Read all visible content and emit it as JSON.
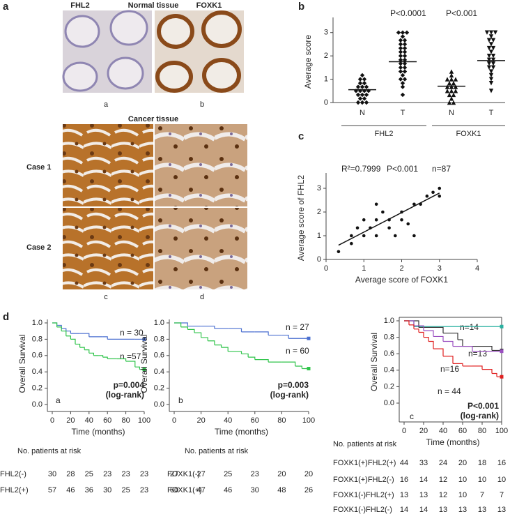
{
  "panel_labels": [
    "a",
    "b",
    "c",
    "d"
  ],
  "panel_a": {
    "normal_labels": [
      "FHL2",
      "Normal tissue",
      "FOXK1"
    ],
    "image_labels": [
      "a",
      "b",
      "c",
      "d"
    ],
    "cancer_title": "Cancer tissue",
    "cases": [
      "Case 1",
      "Case 2"
    ]
  },
  "chart_data": [
    {
      "type": "strip",
      "ylabel": "Average score",
      "categories": [
        "N",
        "T",
        "N",
        "T"
      ],
      "groups": [
        "FHL2",
        "FOXK1"
      ],
      "annotations": [
        "P<0.0001",
        "P<0.001"
      ],
      "markers": [
        "diamond",
        "diamond",
        "triangle",
        "triangle-down"
      ],
      "color": "#111111",
      "ylim": [
        0,
        3.5
      ],
      "yticks": [
        0,
        1,
        2,
        3
      ],
      "points": [
        [
          0,
          0,
          0,
          0.17,
          0.17,
          0.33,
          0.33,
          0.33,
          0.5,
          0.5,
          0.5,
          0.5,
          0.67,
          0.67,
          0.67,
          0.83,
          0.83,
          1,
          1,
          1.17
        ],
        [
          0.33,
          0.67,
          0.83,
          1,
          1,
          1.17,
          1.33,
          1.33,
          1.5,
          1.5,
          1.67,
          1.67,
          1.83,
          1.83,
          2,
          2,
          2.17,
          2.17,
          2.33,
          2.33,
          2.5,
          2.5,
          2.67,
          2.67,
          2.83,
          3,
          3,
          3
        ],
        [
          0,
          0,
          0.17,
          0.33,
          0.33,
          0.5,
          0.5,
          0.5,
          0.67,
          0.67,
          0.67,
          0.83,
          0.83,
          1,
          1,
          1,
          1.17,
          1.33
        ],
        [
          0.5,
          0.83,
          1,
          1.17,
          1.33,
          1.5,
          1.5,
          1.67,
          1.67,
          1.83,
          1.83,
          2,
          2,
          2.17,
          2.33,
          2.33,
          2.5,
          2.67,
          2.67,
          2.83,
          3,
          3,
          3
        ]
      ],
      "means": [
        0.55,
        1.75,
        0.7,
        1.8
      ]
    },
    {
      "type": "scatter",
      "xlabel": "Average score of FOXK1",
      "ylabel": "Average score of FHL2",
      "annotations": [
        "R²=0.7999",
        "P<0.001",
        "n=87"
      ],
      "color": "#111111",
      "xlim": [
        0,
        4
      ],
      "xticks": [
        0,
        1,
        2,
        3,
        4
      ],
      "ylim": [
        0,
        3.5
      ],
      "yticks": [
        0,
        1,
        2,
        3
      ],
      "x": [
        0.33,
        0.67,
        0.67,
        0.83,
        1,
        1,
        1.17,
        1.33,
        1.33,
        1.33,
        1.5,
        1.67,
        1.67,
        1.83,
        2,
        2,
        2.17,
        2.33,
        2.33,
        2.5,
        2.67,
        2.83,
        3,
        3
      ],
      "values": [
        0.33,
        0.67,
        1,
        1.33,
        1,
        1.67,
        1.33,
        1,
        1.67,
        2.33,
        2,
        1.67,
        1.33,
        1,
        2,
        1.67,
        1.5,
        2.33,
        1,
        2.33,
        2.67,
        2.83,
        3,
        2.67
      ],
      "fit_line": {
        "x": [
          0.33,
          3
        ],
        "y": [
          0.6,
          2.8
        ]
      }
    },
    {
      "type": "step",
      "xlabel": "Time (months)",
      "ylabel": "Overall Survival",
      "annotations": [
        "n = 30",
        "n =57",
        "p=0.004",
        "(log-rank)",
        "a"
      ],
      "xlim": [
        0,
        100
      ],
      "xticks": [
        0,
        20,
        40,
        60,
        80,
        100
      ],
      "ylim": [
        0,
        1
      ],
      "yticks": [
        {
          "value": 0,
          "label": "0.0"
        },
        0.2,
        0.4,
        0.6,
        0.8,
        {
          "value": 1,
          "label": "1.0"
        }
      ],
      "series": [
        {
          "color": "#4a6fd0",
          "x": [
            0,
            5,
            10,
            15,
            20,
            30,
            40,
            55,
            60,
            90,
            100
          ],
          "values": [
            1,
            0.97,
            0.93,
            0.9,
            0.87,
            0.87,
            0.83,
            0.83,
            0.8,
            0.8,
            0.8
          ]
        },
        {
          "color": "#2fc44a",
          "x": [
            0,
            5,
            10,
            15,
            20,
            25,
            30,
            35,
            40,
            45,
            50,
            55,
            60,
            70,
            80,
            90,
            95,
            100
          ],
          "values": [
            1,
            0.95,
            0.9,
            0.84,
            0.8,
            0.74,
            0.7,
            0.67,
            0.63,
            0.6,
            0.6,
            0.58,
            0.56,
            0.56,
            0.53,
            0.46,
            0.43,
            0.43
          ]
        }
      ]
    },
    {
      "type": "step",
      "xlabel": "Time (months)",
      "ylabel": "Overall Survival",
      "annotations": [
        "n = 27",
        "n = 60",
        "p=0.003",
        "(log-rank)",
        "b"
      ],
      "xlim": [
        0,
        100
      ],
      "xticks": [
        0,
        20,
        40,
        60,
        80,
        100
      ],
      "ylim": [
        0,
        1
      ],
      "yticks": [
        {
          "value": 0,
          "label": "0.0"
        },
        0.2,
        0.4,
        0.6,
        0.8,
        {
          "value": 1,
          "label": "1.0"
        }
      ],
      "series": [
        {
          "color": "#4a6fd0",
          "x": [
            0,
            10,
            20,
            30,
            40,
            50,
            60,
            70,
            80,
            85,
            100
          ],
          "values": [
            1,
            0.96,
            0.96,
            0.93,
            0.93,
            0.89,
            0.89,
            0.85,
            0.85,
            0.81,
            0.81
          ]
        },
        {
          "color": "#2fc44a",
          "x": [
            0,
            5,
            10,
            15,
            20,
            25,
            30,
            35,
            40,
            50,
            55,
            60,
            70,
            80,
            90,
            95,
            100
          ],
          "values": [
            1,
            0.95,
            0.92,
            0.88,
            0.82,
            0.78,
            0.73,
            0.7,
            0.65,
            0.62,
            0.58,
            0.55,
            0.52,
            0.52,
            0.47,
            0.44,
            0.44
          ]
        }
      ]
    },
    {
      "type": "step",
      "xlabel": "Time (months)",
      "ylabel": "Overall Survival",
      "annotations": [
        "n=14",
        "n=13",
        "n=16",
        "n = 44",
        "P<0.001",
        "(log-rank)",
        "c"
      ],
      "xlim": [
        0,
        100
      ],
      "xticks": [
        0,
        20,
        40,
        60,
        80,
        100
      ],
      "ylim": [
        0,
        1
      ],
      "yticks": [
        {
          "value": 0,
          "label": "0.0"
        },
        0.2,
        0.4,
        0.6,
        0.8,
        {
          "value": 1,
          "label": "1.0"
        }
      ],
      "series": [
        {
          "color": "#2ab0a0",
          "x": [
            0,
            10,
            20,
            100
          ],
          "values": [
            1,
            0.93,
            0.93,
            0.93
          ]
        },
        {
          "color": "#333333",
          "x": [
            0,
            15,
            40,
            55,
            60,
            80,
            90,
            100
          ],
          "values": [
            1,
            0.92,
            0.85,
            0.77,
            0.69,
            0.69,
            0.64,
            0.64
          ]
        },
        {
          "color": "#9a4fc0",
          "x": [
            0,
            10,
            20,
            30,
            40,
            50,
            60,
            70,
            100
          ],
          "values": [
            1,
            0.94,
            0.88,
            0.81,
            0.75,
            0.69,
            0.69,
            0.63,
            0.63
          ]
        },
        {
          "color": "#e02020",
          "x": [
            0,
            5,
            10,
            15,
            20,
            25,
            30,
            40,
            50,
            60,
            70,
            80,
            90,
            95,
            100
          ],
          "values": [
            1,
            0.95,
            0.9,
            0.86,
            0.8,
            0.75,
            0.66,
            0.57,
            0.48,
            0.45,
            0.45,
            0.41,
            0.36,
            0.32,
            0.32
          ]
        }
      ]
    }
  ],
  "risk_tables": [
    {
      "title": "No. patients at risk",
      "rows": [
        {
          "label": "FHL2(-)",
          "values": [
            30,
            28,
            25,
            23,
            23,
            23
          ]
        },
        {
          "label": "FHL2(+)",
          "values": [
            57,
            46,
            36,
            30,
            25,
            23
          ]
        }
      ]
    },
    {
      "title": "No. patients at risk",
      "rows": [
        {
          "label": "FOXK1(-)",
          "values": [
            27,
            27,
            25,
            23,
            20,
            20
          ]
        },
        {
          "label": "FOXK1(+)",
          "values": [
            60,
            47,
            46,
            30,
            48,
            26
          ]
        }
      ]
    },
    {
      "title": "No. patients at risk",
      "rows": [
        {
          "label": "FOXK1(+)FHL2(+)",
          "values": [
            44,
            33,
            24,
            20,
            18,
            16
          ]
        },
        {
          "label": "FOXK1(+)FHL2(-)",
          "values": [
            16,
            14,
            12,
            10,
            10,
            10
          ]
        },
        {
          "label": "FOXK1(-)FHL2(+)",
          "values": [
            13,
            13,
            12,
            10,
            7,
            7
          ]
        },
        {
          "label": "FOXK1(-)FHL2(-)",
          "values": [
            14,
            14,
            13,
            13,
            13,
            13
          ]
        }
      ]
    }
  ]
}
